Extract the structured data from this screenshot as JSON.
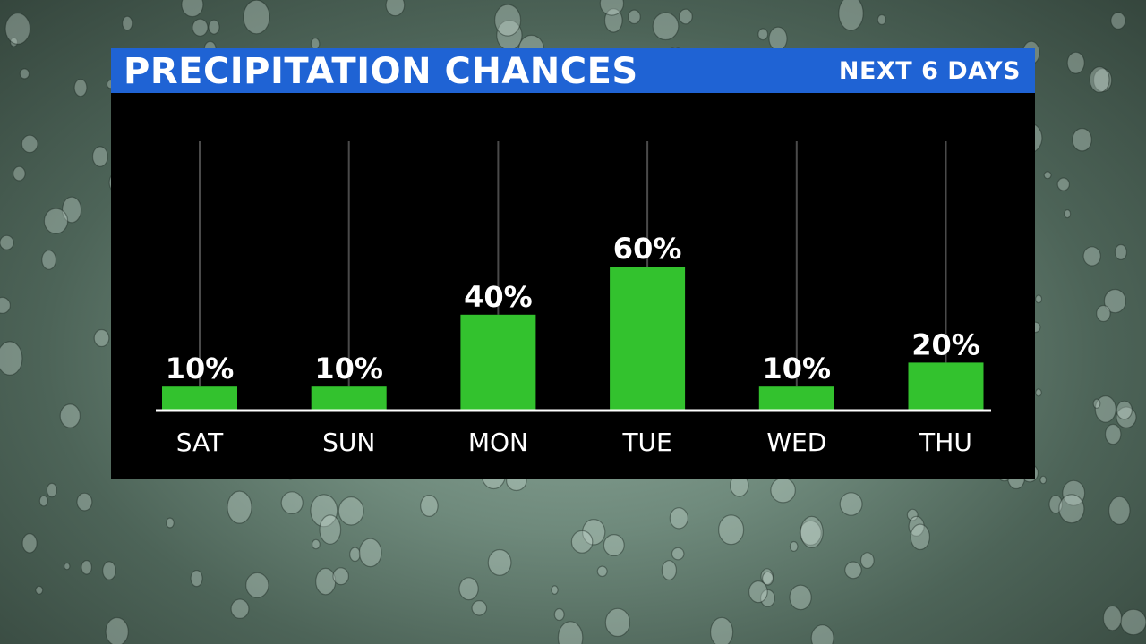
{
  "header": {
    "title": "PRECIPITATION CHANCES",
    "subtitle": "NEXT 6 DAYS"
  },
  "colors": {
    "header_blue": "#1f63d4",
    "bar_green": "#33c22e",
    "panel_black": "#000000"
  },
  "chart_data": {
    "type": "bar",
    "categories": [
      "SAT",
      "SUN",
      "MON",
      "TUE",
      "WED",
      "THU"
    ],
    "values": [
      10,
      10,
      40,
      60,
      10,
      20
    ],
    "value_labels": [
      "10%",
      "10%",
      "40%",
      "60%",
      "10%",
      "20%"
    ],
    "title": "PRECIPITATION CHANCES",
    "subtitle": "NEXT 6 DAYS",
    "xlabel": "",
    "ylabel": "",
    "ylim": [
      0,
      100
    ],
    "grid": false,
    "legend": "none"
  }
}
